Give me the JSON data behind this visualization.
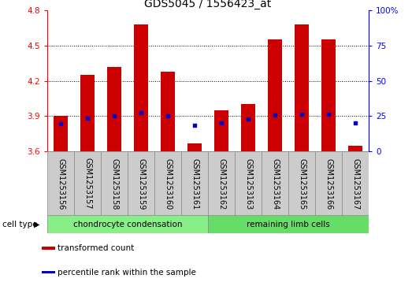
{
  "title": "GDS5045 / 1556423_at",
  "samples": [
    "GSM1253156",
    "GSM1253157",
    "GSM1253158",
    "GSM1253159",
    "GSM1253160",
    "GSM1253161",
    "GSM1253162",
    "GSM1253163",
    "GSM1253164",
    "GSM1253165",
    "GSM1253166",
    "GSM1253167"
  ],
  "bar_tops": [
    3.9,
    4.25,
    4.32,
    4.68,
    4.28,
    3.67,
    3.95,
    4.0,
    4.55,
    4.68,
    4.55,
    3.65
  ],
  "blue_dots": [
    3.835,
    3.885,
    3.9,
    3.93,
    3.9,
    3.82,
    3.84,
    3.875,
    3.91,
    3.915,
    3.915,
    3.84
  ],
  "bar_bottom": 3.6,
  "ylim_left": [
    3.6,
    4.8
  ],
  "ylim_right": [
    0,
    100
  ],
  "yticks_left": [
    3.6,
    3.9,
    4.2,
    4.5,
    4.8
  ],
  "yticks_right": [
    0,
    25,
    50,
    75,
    100
  ],
  "bar_color": "#cc0000",
  "dot_color": "#0000cc",
  "groups": [
    {
      "label": "chondrocyte condensation",
      "indices": [
        0,
        1,
        2,
        3,
        4,
        5
      ],
      "color": "#88ee88"
    },
    {
      "label": "remaining limb cells",
      "indices": [
        6,
        7,
        8,
        9,
        10,
        11
      ],
      "color": "#66dd66"
    }
  ],
  "cell_type_label": "cell type",
  "legend_items": [
    {
      "color": "#cc0000",
      "label": "transformed count"
    },
    {
      "color": "#0000cc",
      "label": "percentile rank within the sample"
    }
  ],
  "grid_lines": [
    3.9,
    4.2,
    4.5
  ],
  "title_fontsize": 10,
  "tick_fontsize": 7.5,
  "label_fontsize": 7,
  "bar_width": 0.55,
  "sample_box_color": "#cccccc",
  "spine_color": "#888888"
}
